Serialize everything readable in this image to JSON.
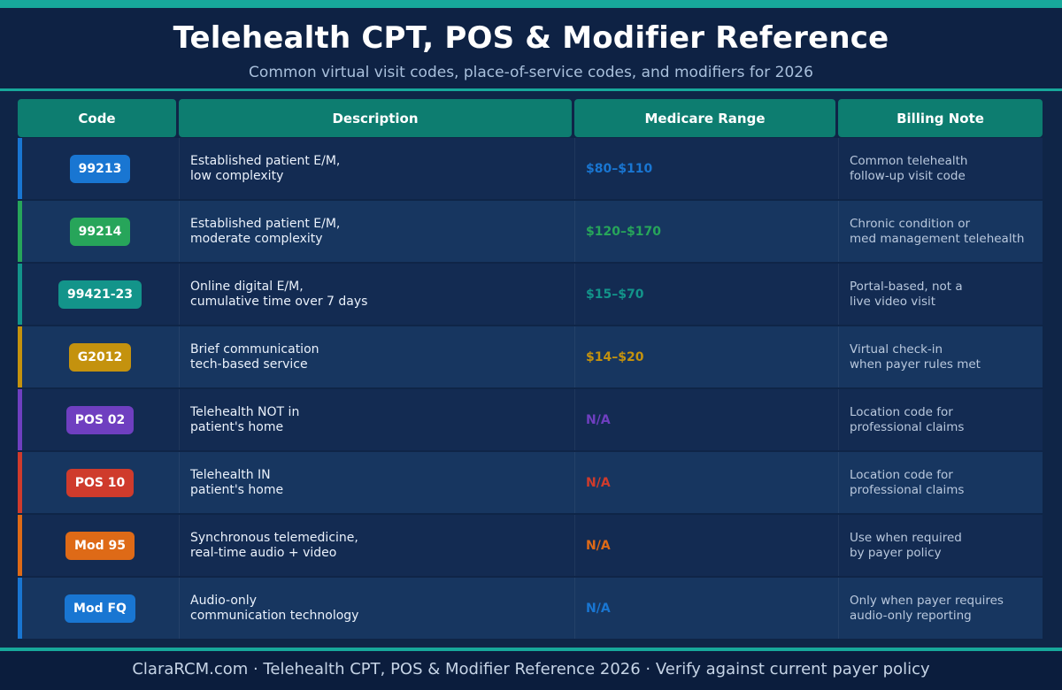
{
  "header": {
    "title": "Telehealth CPT, POS & Modifier Reference",
    "subtitle": "Common virtual visit codes, place-of-service codes, and modifiers for 2026"
  },
  "table": {
    "columns": [
      "Code",
      "Description",
      "Medicare Range",
      "Billing Note"
    ],
    "rows": [
      {
        "code": "99213",
        "color": "#1976d2",
        "desc1": "Established patient E/M,",
        "desc2": "low complexity",
        "range": "$80–$110",
        "note1": "Common telehealth",
        "note2": "follow-up visit code"
      },
      {
        "code": "99214",
        "color": "#27a55a",
        "desc1": "Established patient E/M,",
        "desc2": "moderate complexity",
        "range": "$120–$170",
        "note1": "Chronic condition or",
        "note2": "med management telehealth"
      },
      {
        "code": "99421-23",
        "color": "#13948a",
        "desc1": "Online digital E/M,",
        "desc2": "cumulative time over 7 days",
        "range": "$15–$70",
        "note1": "Portal-based, not a",
        "note2": "live video visit"
      },
      {
        "code": "G2012",
        "color": "#c4920e",
        "desc1": "Brief communication",
        "desc2": "tech-based service",
        "range": "$14–$20",
        "note1": "Virtual check-in",
        "note2": "when payer rules met"
      },
      {
        "code": "POS 02",
        "color": "#6f3fc0",
        "desc1": "Telehealth NOT in",
        "desc2": "patient's home",
        "range": "N/A",
        "note1": "Location code for",
        "note2": "professional claims"
      },
      {
        "code": "POS 10",
        "color": "#cf3b2c",
        "desc1": "Telehealth IN",
        "desc2": "patient's home",
        "range": "N/A",
        "note1": "Location code for",
        "note2": "professional claims"
      },
      {
        "code": "Mod 95",
        "color": "#de6a17",
        "desc1": "Synchronous telemedicine,",
        "desc2": "real-time audio + video",
        "range": "N/A",
        "note1": "Use when required",
        "note2": "by payer policy"
      },
      {
        "code": "Mod FQ",
        "color": "#1976d2",
        "desc1": "Audio-only",
        "desc2": "communication technology",
        "range": "N/A",
        "note1": "Only when payer requires",
        "note2": "audio-only reporting"
      }
    ]
  },
  "footer": {
    "text": "ClaraRCM.com · Telehealth CPT, POS & Modifier Reference 2026 · Verify against current payer policy"
  },
  "colors": {
    "background": "#0f2547",
    "accent": "#17a89b",
    "header_cell": "#0d7d70",
    "row_dark": "#132b52",
    "row_light": "#173660"
  }
}
